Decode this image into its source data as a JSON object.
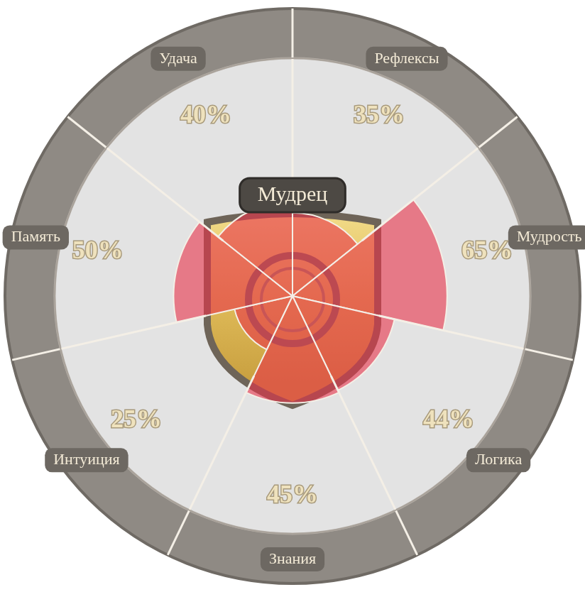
{
  "chart_data": {
    "type": "polarArea",
    "title": "Мудрец",
    "categories": [
      "Рефлексы",
      "Мудрость",
      "Логика",
      "Знания",
      "Интуиция",
      "Память",
      "Удача"
    ],
    "values": [
      35,
      65,
      44,
      45,
      25,
      50,
      40
    ],
    "value_labels": [
      "35%",
      "65%",
      "44%",
      "45%",
      "25%",
      "50%",
      "40%"
    ],
    "color": "#e8324a",
    "ylim": [
      0,
      100
    ],
    "tick_labels": false,
    "data_labels": true
  }
}
